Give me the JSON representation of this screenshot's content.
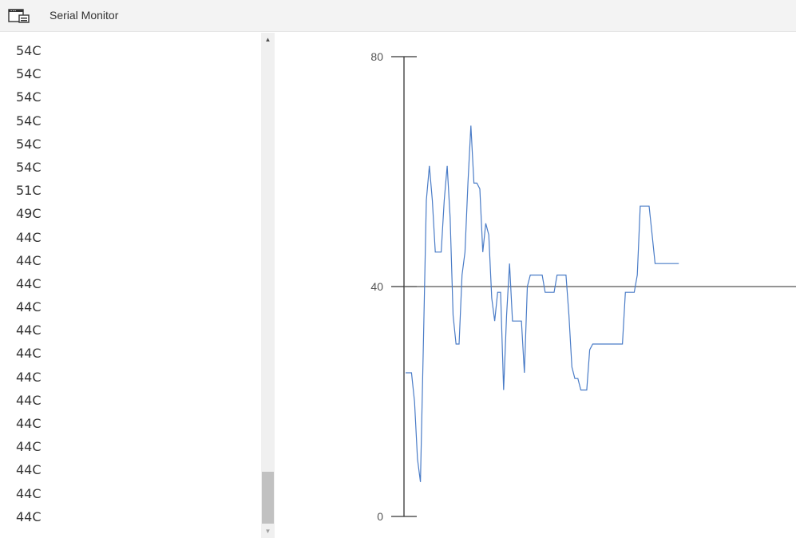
{
  "window": {
    "title": "Serial Monitor",
    "icon": "serial-monitor-window-icon"
  },
  "output": {
    "lines": [
      "54C",
      "54C",
      "54C",
      "54C",
      "54C",
      "54C",
      "51C",
      "49C",
      "44C",
      "44C",
      "44C",
      "44C",
      "44C",
      "44C",
      "44C",
      "44C",
      "44C",
      "44C",
      "44C",
      "44C",
      "44C"
    ]
  },
  "chart_data": {
    "type": "line",
    "title": "",
    "xlabel": "",
    "ylabel": "",
    "ylim": [
      0,
      80
    ],
    "yticks": [
      "0",
      "40",
      "80"
    ],
    "reference_line": 40,
    "grid": false,
    "legend": "none",
    "series": [
      {
        "color": "#4a7cc7",
        "values": [
          25,
          25,
          25,
          20,
          10,
          6,
          30,
          55,
          61,
          55,
          46,
          46,
          46,
          55,
          61,
          52,
          35,
          30,
          30,
          42,
          46,
          58,
          68,
          58,
          58,
          57,
          46,
          51,
          49,
          38,
          34,
          39,
          39,
          22,
          35,
          44,
          34,
          34,
          34,
          34,
          25,
          40,
          42,
          42,
          42,
          42,
          42,
          39,
          39,
          39,
          39,
          42,
          42,
          42,
          42,
          35,
          26,
          24,
          24,
          22,
          22,
          22,
          29,
          30,
          30,
          30,
          30,
          30,
          30,
          30,
          30,
          30,
          30,
          30,
          39,
          39,
          39,
          39,
          42,
          54,
          54,
          54,
          54,
          49,
          44,
          44,
          44,
          44,
          44,
          44,
          44,
          44,
          44
        ]
      }
    ]
  }
}
